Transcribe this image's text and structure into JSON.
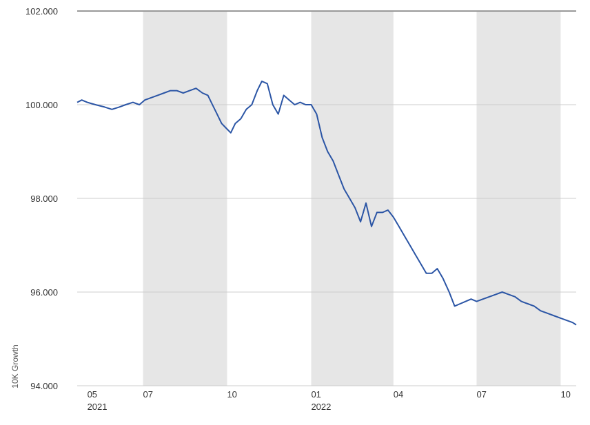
{
  "chart_data": {
    "type": "line",
    "ylabel": "10K Growth",
    "ylim": [
      94,
      102
    ],
    "yticks": [
      "102.000",
      "100.000",
      "98.000",
      "96.000",
      "94.000"
    ],
    "ytick_values": [
      102,
      100,
      98,
      96,
      94
    ],
    "xlim": [
      "2021-04-20",
      "2022-10-18"
    ],
    "xticks": [
      {
        "date": "2021-05-01",
        "label": "05",
        "year": "2021"
      },
      {
        "date": "2021-07-01",
        "label": "07",
        "year": ""
      },
      {
        "date": "2021-10-01",
        "label": "10",
        "year": ""
      },
      {
        "date": "2022-01-01",
        "label": "01",
        "year": "2022"
      },
      {
        "date": "2022-04-01",
        "label": "04",
        "year": ""
      },
      {
        "date": "2022-07-01",
        "label": "07",
        "year": ""
      },
      {
        "date": "2022-10-01",
        "label": "10",
        "year": ""
      }
    ],
    "shaded_bands": [
      [
        "2021-07-01",
        "2021-10-01"
      ],
      [
        "2022-01-01",
        "2022-04-01"
      ],
      [
        "2022-07-01",
        "2022-10-01"
      ]
    ],
    "grid": true,
    "colors": {
      "line": "#2b55a5",
      "band": "#e6e6e6",
      "grid": "#cccccc",
      "top_rule": "#999999"
    },
    "series": [
      {
        "x": [
          "2021-04-20",
          "2021-04-25",
          "2021-05-01",
          "2021-05-10",
          "2021-05-20",
          "2021-05-28",
          "2021-06-05",
          "2021-06-12",
          "2021-06-20",
          "2021-06-27",
          "2021-07-03",
          "2021-07-10",
          "2021-07-17",
          "2021-07-24",
          "2021-07-31",
          "2021-08-07",
          "2021-08-14",
          "2021-08-21",
          "2021-08-28",
          "2021-09-04",
          "2021-09-10",
          "2021-09-15",
          "2021-09-20",
          "2021-09-25",
          "2021-09-30",
          "2021-10-05",
          "2021-10-10",
          "2021-10-16",
          "2021-10-22",
          "2021-10-28",
          "2021-11-03",
          "2021-11-08",
          "2021-11-14",
          "2021-11-20",
          "2021-11-26",
          "2021-12-02",
          "2021-12-08",
          "2021-12-14",
          "2021-12-20",
          "2021-12-26",
          "2022-01-01",
          "2022-01-07",
          "2022-01-13",
          "2022-01-19",
          "2022-01-25",
          "2022-01-31",
          "2022-02-06",
          "2022-02-12",
          "2022-02-18",
          "2022-02-24",
          "2022-03-02",
          "2022-03-08",
          "2022-03-14",
          "2022-03-20",
          "2022-03-26",
          "2022-04-01",
          "2022-04-07",
          "2022-04-13",
          "2022-04-19",
          "2022-04-25",
          "2022-05-01",
          "2022-05-07",
          "2022-05-13",
          "2022-05-19",
          "2022-05-25",
          "2022-06-01",
          "2022-06-07",
          "2022-06-13",
          "2022-06-19",
          "2022-06-25",
          "2022-07-01",
          "2022-07-08",
          "2022-07-15",
          "2022-07-22",
          "2022-07-29",
          "2022-08-05",
          "2022-08-12",
          "2022-08-19",
          "2022-08-26",
          "2022-09-02",
          "2022-09-09",
          "2022-09-16",
          "2022-09-23",
          "2022-09-30",
          "2022-10-07",
          "2022-10-14",
          "2022-10-18"
        ],
        "y": [
          100.05,
          100.1,
          100.05,
          100.0,
          99.95,
          99.9,
          99.95,
          100.0,
          100.05,
          100.0,
          100.1,
          100.15,
          100.2,
          100.25,
          100.3,
          100.3,
          100.25,
          100.3,
          100.35,
          100.25,
          100.2,
          100.0,
          99.8,
          99.6,
          99.5,
          99.4,
          99.6,
          99.7,
          99.9,
          100.0,
          100.3,
          100.5,
          100.45,
          100.0,
          99.8,
          100.2,
          100.1,
          100.0,
          100.05,
          100.0,
          100.0,
          99.8,
          99.3,
          99.0,
          98.8,
          98.5,
          98.2,
          98.0,
          97.8,
          97.5,
          97.9,
          97.4,
          97.7,
          97.7,
          97.75,
          97.6,
          97.4,
          97.2,
          97.0,
          96.8,
          96.6,
          96.4,
          96.4,
          96.5,
          96.3,
          96.0,
          95.7,
          95.75,
          95.8,
          95.85,
          95.8,
          95.85,
          95.9,
          95.95,
          96.0,
          95.95,
          95.9,
          95.8,
          95.75,
          95.7,
          95.6,
          95.55,
          95.5,
          95.45,
          95.4,
          95.35,
          95.3
        ]
      }
    ]
  }
}
